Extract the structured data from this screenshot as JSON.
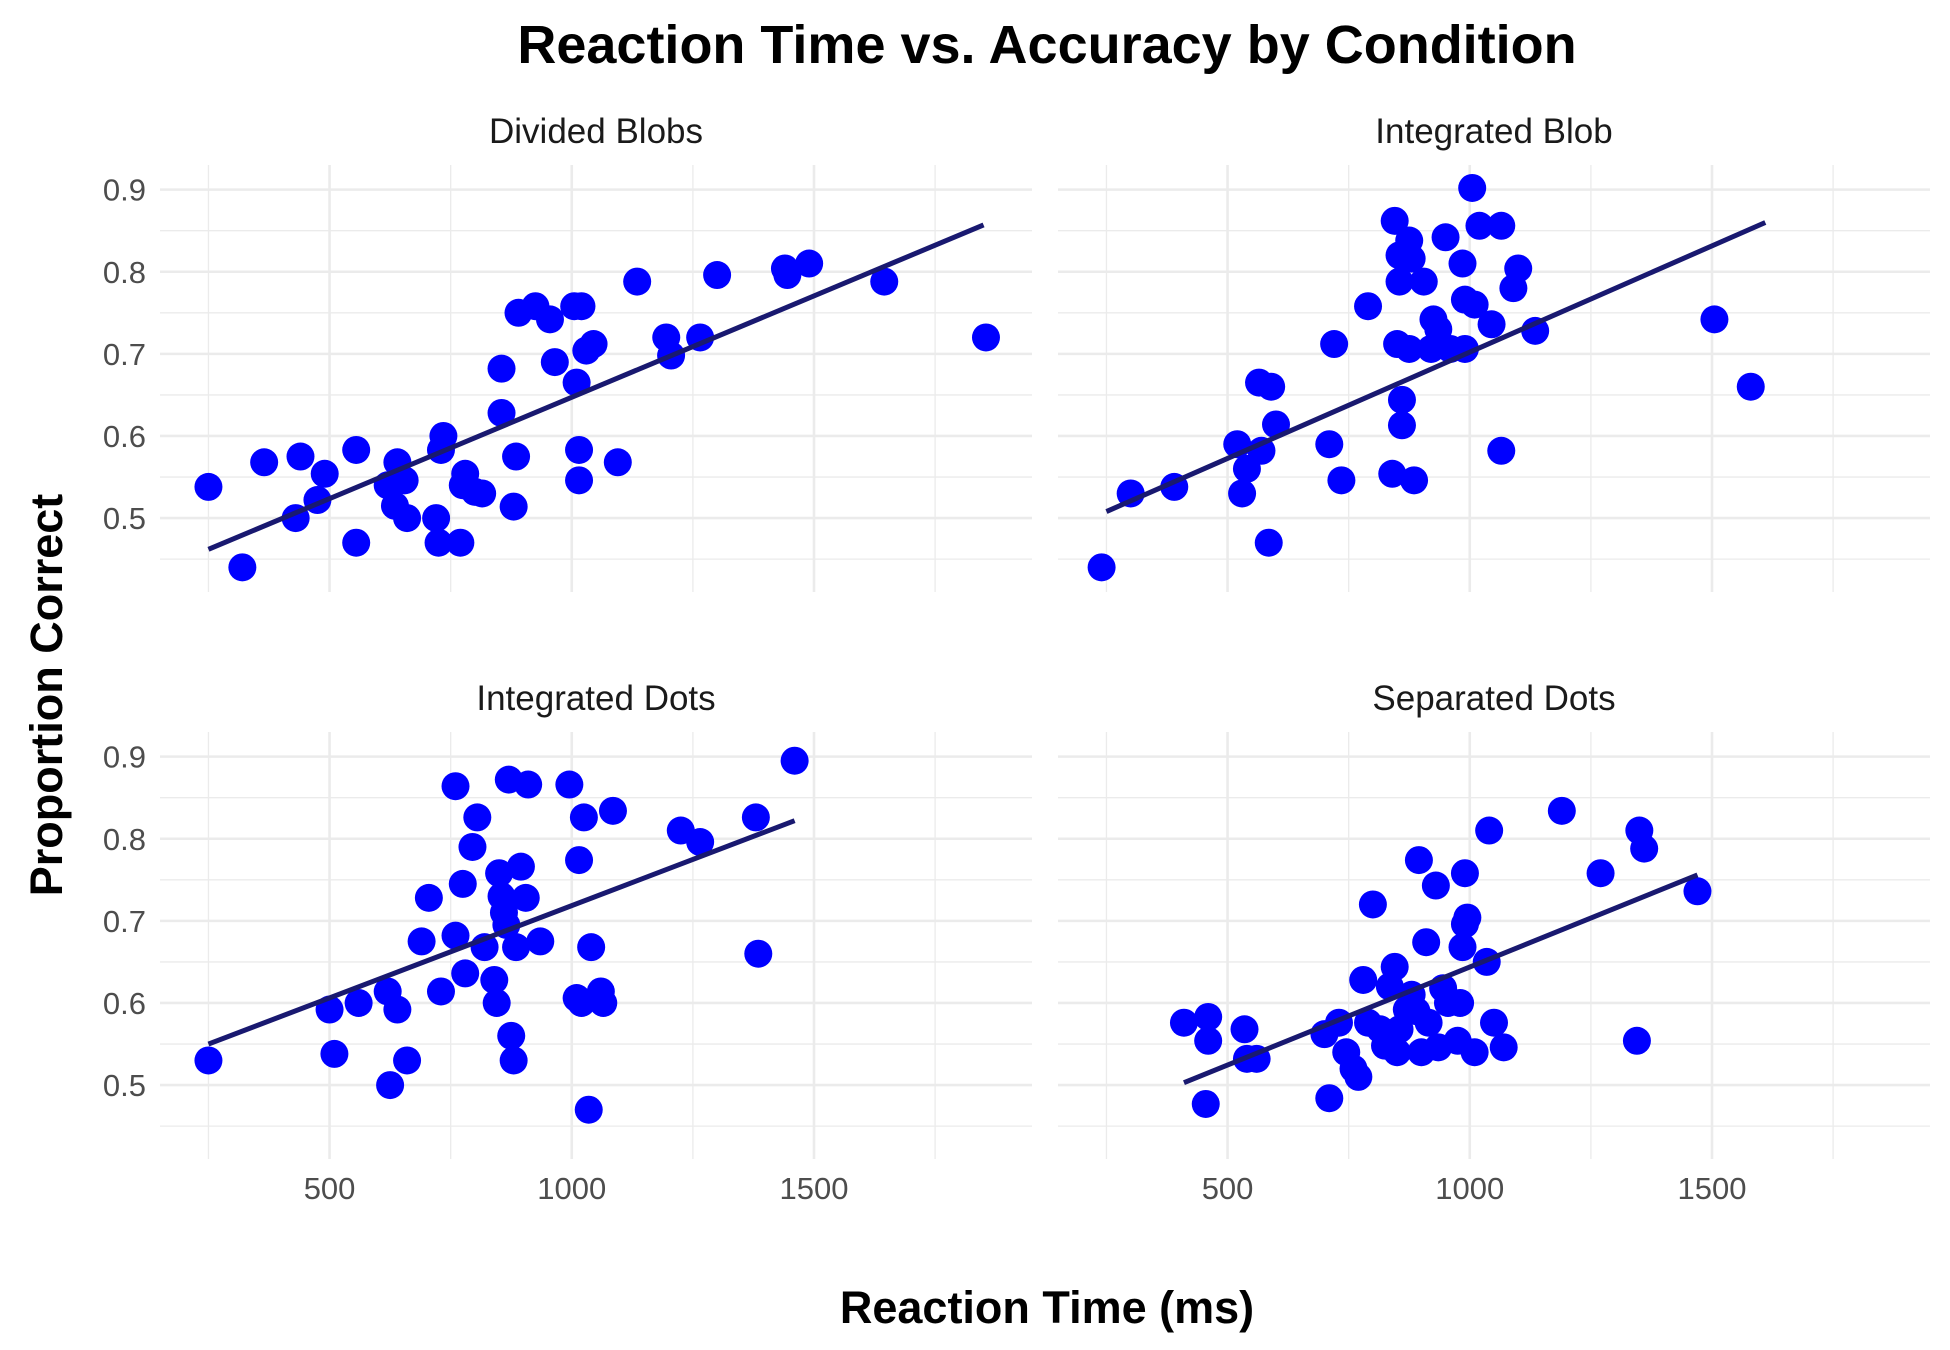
{
  "chart_data": {
    "type": "scatter",
    "title": "Reaction Time vs. Accuracy by Condition",
    "xlabel": "Reaction Time (ms)",
    "ylabel": "Proportion Correct",
    "xlim": [
      150,
      1950
    ],
    "ylim": [
      0.41,
      0.93
    ],
    "x_ticks": [
      500,
      1000,
      1500
    ],
    "x_tick_labels": [
      "500",
      "1000",
      "1500"
    ],
    "y_ticks": [
      0.5,
      0.6,
      0.7,
      0.8,
      0.9
    ],
    "y_tick_labels": [
      "0.5",
      "0.6",
      "0.7",
      "0.8",
      "0.9"
    ],
    "grid": true,
    "point_color": "#0000ff",
    "line_color": "#191970",
    "panels": [
      {
        "name": "Divided Blobs",
        "trend": {
          "x": [
            250,
            1850
          ],
          "y": [
            0.462,
            0.857
          ]
        },
        "points": [
          [
            250,
            0.538
          ],
          [
            320,
            0.44
          ],
          [
            365,
            0.568
          ],
          [
            430,
            0.5
          ],
          [
            440,
            0.575
          ],
          [
            475,
            0.522
          ],
          [
            490,
            0.554
          ],
          [
            555,
            0.583
          ],
          [
            555,
            0.47
          ],
          [
            620,
            0.54
          ],
          [
            635,
            0.515
          ],
          [
            640,
            0.568
          ],
          [
            655,
            0.546
          ],
          [
            660,
            0.5
          ],
          [
            720,
            0.5
          ],
          [
            725,
            0.47
          ],
          [
            730,
            0.583
          ],
          [
            735,
            0.6
          ],
          [
            770,
            0.47
          ],
          [
            775,
            0.54
          ],
          [
            780,
            0.554
          ],
          [
            800,
            0.532
          ],
          [
            815,
            0.53
          ],
          [
            855,
            0.682
          ],
          [
            855,
            0.628
          ],
          [
            880,
            0.514
          ],
          [
            885,
            0.575
          ],
          [
            890,
            0.75
          ],
          [
            925,
            0.758
          ],
          [
            955,
            0.742
          ],
          [
            965,
            0.69
          ],
          [
            1005,
            0.758
          ],
          [
            1010,
            0.665
          ],
          [
            1015,
            0.546
          ],
          [
            1015,
            0.583
          ],
          [
            1020,
            0.758
          ],
          [
            1030,
            0.704
          ],
          [
            1045,
            0.712
          ],
          [
            1095,
            0.568
          ],
          [
            1135,
            0.788
          ],
          [
            1195,
            0.72
          ],
          [
            1205,
            0.698
          ],
          [
            1265,
            0.72
          ],
          [
            1300,
            0.796
          ],
          [
            1440,
            0.804
          ],
          [
            1445,
            0.796
          ],
          [
            1490,
            0.81
          ],
          [
            1645,
            0.788
          ],
          [
            1855,
            0.72
          ]
        ]
      },
      {
        "name": "Integrated Blob",
        "trend": {
          "x": [
            250,
            1610
          ],
          "y": [
            0.508,
            0.86
          ]
        },
        "points": [
          [
            240,
            0.44
          ],
          [
            300,
            0.53
          ],
          [
            390,
            0.538
          ],
          [
            520,
            0.59
          ],
          [
            530,
            0.53
          ],
          [
            540,
            0.56
          ],
          [
            565,
            0.665
          ],
          [
            570,
            0.582
          ],
          [
            585,
            0.47
          ],
          [
            590,
            0.66
          ],
          [
            600,
            0.614
          ],
          [
            710,
            0.59
          ],
          [
            720,
            0.712
          ],
          [
            735,
            0.546
          ],
          [
            790,
            0.758
          ],
          [
            840,
            0.554
          ],
          [
            845,
            0.862
          ],
          [
            850,
            0.712
          ],
          [
            855,
            0.82
          ],
          [
            855,
            0.788
          ],
          [
            860,
            0.613
          ],
          [
            860,
            0.644
          ],
          [
            875,
            0.838
          ],
          [
            875,
            0.706
          ],
          [
            880,
            0.816
          ],
          [
            885,
            0.546
          ],
          [
            905,
            0.788
          ],
          [
            920,
            0.706
          ],
          [
            925,
            0.742
          ],
          [
            935,
            0.73
          ],
          [
            950,
            0.842
          ],
          [
            960,
            0.706
          ],
          [
            985,
            0.81
          ],
          [
            990,
            0.706
          ],
          [
            990,
            0.766
          ],
          [
            1005,
            0.902
          ],
          [
            1010,
            0.76
          ],
          [
            1020,
            0.856
          ],
          [
            1045,
            0.736
          ],
          [
            1065,
            0.856
          ],
          [
            1065,
            0.582
          ],
          [
            1090,
            0.78
          ],
          [
            1100,
            0.804
          ],
          [
            1135,
            0.728
          ],
          [
            1505,
            0.742
          ],
          [
            1580,
            0.66
          ]
        ]
      },
      {
        "name": "Integrated Dots",
        "trend": {
          "x": [
            250,
            1460
          ],
          "y": [
            0.55,
            0.822
          ]
        },
        "points": [
          [
            250,
            0.53
          ],
          [
            500,
            0.592
          ],
          [
            510,
            0.538
          ],
          [
            560,
            0.6
          ],
          [
            620,
            0.614
          ],
          [
            625,
            0.5
          ],
          [
            640,
            0.592
          ],
          [
            660,
            0.53
          ],
          [
            690,
            0.675
          ],
          [
            705,
            0.728
          ],
          [
            730,
            0.614
          ],
          [
            760,
            0.864
          ],
          [
            760,
            0.682
          ],
          [
            775,
            0.745
          ],
          [
            780,
            0.636
          ],
          [
            795,
            0.79
          ],
          [
            805,
            0.826
          ],
          [
            820,
            0.668
          ],
          [
            840,
            0.628
          ],
          [
            845,
            0.6
          ],
          [
            850,
            0.758
          ],
          [
            855,
            0.73
          ],
          [
            860,
            0.71
          ],
          [
            865,
            0.695
          ],
          [
            870,
            0.872
          ],
          [
            875,
            0.56
          ],
          [
            880,
            0.53
          ],
          [
            885,
            0.668
          ],
          [
            895,
            0.766
          ],
          [
            905,
            0.728
          ],
          [
            910,
            0.866
          ],
          [
            935,
            0.675
          ],
          [
            995,
            0.866
          ],
          [
            1010,
            0.606
          ],
          [
            1015,
            0.774
          ],
          [
            1020,
            0.6
          ],
          [
            1025,
            0.826
          ],
          [
            1035,
            0.47
          ],
          [
            1040,
            0.668
          ],
          [
            1060,
            0.614
          ],
          [
            1065,
            0.6
          ],
          [
            1085,
            0.834
          ],
          [
            1225,
            0.81
          ],
          [
            1265,
            0.796
          ],
          [
            1380,
            0.826
          ],
          [
            1385,
            0.66
          ],
          [
            1460,
            0.895
          ]
        ]
      },
      {
        "name": "Separated Dots",
        "trend": {
          "x": [
            410,
            1470
          ],
          "y": [
            0.503,
            0.756
          ]
        },
        "points": [
          [
            410,
            0.576
          ],
          [
            455,
            0.477
          ],
          [
            460,
            0.583
          ],
          [
            460,
            0.554
          ],
          [
            535,
            0.568
          ],
          [
            540,
            0.532
          ],
          [
            560,
            0.532
          ],
          [
            700,
            0.562
          ],
          [
            710,
            0.484
          ],
          [
            730,
            0.576
          ],
          [
            745,
            0.54
          ],
          [
            760,
            0.52
          ],
          [
            770,
            0.51
          ],
          [
            780,
            0.628
          ],
          [
            790,
            0.576
          ],
          [
            800,
            0.72
          ],
          [
            815,
            0.568
          ],
          [
            825,
            0.548
          ],
          [
            835,
            0.62
          ],
          [
            845,
            0.644
          ],
          [
            850,
            0.54
          ],
          [
            855,
            0.568
          ],
          [
            870,
            0.592
          ],
          [
            880,
            0.61
          ],
          [
            890,
            0.59
          ],
          [
            895,
            0.774
          ],
          [
            900,
            0.54
          ],
          [
            910,
            0.674
          ],
          [
            915,
            0.576
          ],
          [
            930,
            0.743
          ],
          [
            935,
            0.546
          ],
          [
            945,
            0.618
          ],
          [
            955,
            0.6
          ],
          [
            975,
            0.554
          ],
          [
            980,
            0.6
          ],
          [
            985,
            0.668
          ],
          [
            990,
            0.758
          ],
          [
            990,
            0.696
          ],
          [
            995,
            0.704
          ],
          [
            1010,
            0.54
          ],
          [
            1035,
            0.65
          ],
          [
            1040,
            0.81
          ],
          [
            1050,
            0.576
          ],
          [
            1070,
            0.546
          ],
          [
            1190,
            0.834
          ],
          [
            1270,
            0.758
          ],
          [
            1345,
            0.554
          ],
          [
            1350,
            0.81
          ],
          [
            1360,
            0.788
          ],
          [
            1470,
            0.736
          ]
        ]
      }
    ]
  }
}
